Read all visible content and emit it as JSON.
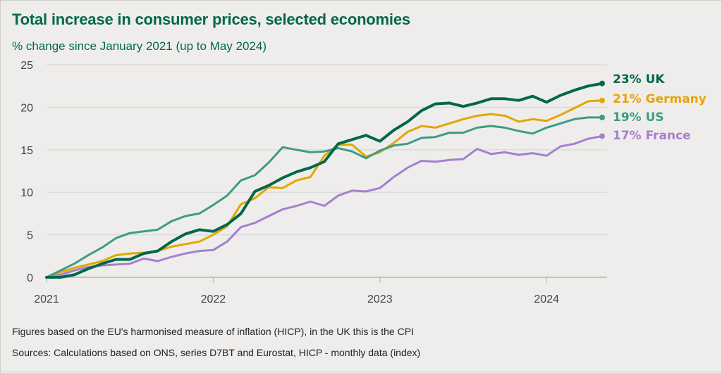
{
  "chart_data": {
    "type": "line",
    "title": "Total increase in consumer prices, selected economies",
    "subtitle": "% change since January 2021 (up to May 2024)",
    "xlabel": "",
    "ylabel": "",
    "x_start": "2021-01",
    "x_end": "2024-05",
    "x_unit": "month",
    "x_ticks": [
      {
        "label": "2021",
        "month_index": 0
      },
      {
        "label": "2022",
        "month_index": 12
      },
      {
        "label": "2023",
        "month_index": 24
      },
      {
        "label": "2024",
        "month_index": 36
      }
    ],
    "ylim": [
      0,
      25
    ],
    "y_ticks": [
      0,
      5,
      10,
      15,
      20,
      25
    ],
    "grid": true,
    "legend_placement": "right (end-of-line labels)",
    "series": [
      {
        "name": "UK",
        "end_label": "23% UK",
        "color": "#00684a",
        "emphasis": true,
        "values": [
          0,
          0,
          0.3,
          1.0,
          1.6,
          2.1,
          2.1,
          2.8,
          3.1,
          4.2,
          5.1,
          5.6,
          5.4,
          6.2,
          7.5,
          10.1,
          10.8,
          11.7,
          12.4,
          12.9,
          13.6,
          15.7,
          16.2,
          16.7,
          16.0,
          17.3,
          18.3,
          19.6,
          20.4,
          20.5,
          20.1,
          20.5,
          21.0,
          21.0,
          20.8,
          21.3,
          20.6,
          21.4,
          22.0,
          22.5,
          22.8
        ]
      },
      {
        "name": "Germany",
        "end_label": "21% Germany",
        "color": "#e3a600",
        "emphasis": false,
        "values": [
          0,
          0.6,
          1.1,
          1.5,
          1.9,
          2.6,
          2.8,
          2.9,
          3.1,
          3.6,
          3.9,
          4.2,
          5.0,
          6.0,
          8.6,
          9.3,
          10.6,
          10.5,
          11.4,
          11.8,
          14.3,
          15.6,
          15.6,
          14.2,
          14.7,
          15.8,
          17.1,
          17.8,
          17.6,
          18.1,
          18.6,
          19.0,
          19.2,
          19.0,
          18.3,
          18.6,
          18.4,
          19.1,
          19.9,
          20.7,
          20.8
        ]
      },
      {
        "name": "US",
        "end_label": "19% US",
        "color": "#3d9c86",
        "emphasis": false,
        "values": [
          0,
          0.8,
          1.6,
          2.6,
          3.5,
          4.6,
          5.2,
          5.4,
          5.6,
          6.6,
          7.2,
          7.5,
          8.5,
          9.6,
          11.4,
          12.0,
          13.5,
          15.3,
          15.0,
          14.7,
          14.8,
          15.2,
          14.8,
          14.0,
          14.9,
          15.5,
          15.7,
          16.4,
          16.5,
          17.0,
          17.0,
          17.6,
          17.8,
          17.6,
          17.2,
          16.9,
          17.6,
          18.1,
          18.6,
          18.8,
          18.8
        ]
      },
      {
        "name": "France",
        "end_label": "17% France",
        "color": "#a57fcf",
        "emphasis": false,
        "values": [
          0,
          0.3,
          0.8,
          1.2,
          1.4,
          1.5,
          1.6,
          2.2,
          1.9,
          2.4,
          2.8,
          3.1,
          3.2,
          4.2,
          5.9,
          6.4,
          7.2,
          8.0,
          8.4,
          8.9,
          8.4,
          9.6,
          10.2,
          10.1,
          10.5,
          11.8,
          12.9,
          13.7,
          13.6,
          13.8,
          13.9,
          15.1,
          14.5,
          14.7,
          14.4,
          14.6,
          14.3,
          15.4,
          15.7,
          16.3,
          16.6
        ]
      }
    ]
  },
  "footnotes": {
    "note": "Figures based on the EU's harmonised measure of inflation (HICP), in the UK this is the CPI",
    "sources": "Sources: Calculations based on ONS, series D7BT and Eurostat, HICP - monthly data (index)"
  },
  "colors": {
    "title": "#00684a",
    "background": "#efedeb",
    "gridline": "#d9d7d4",
    "axis": "#b5b3b0"
  }
}
